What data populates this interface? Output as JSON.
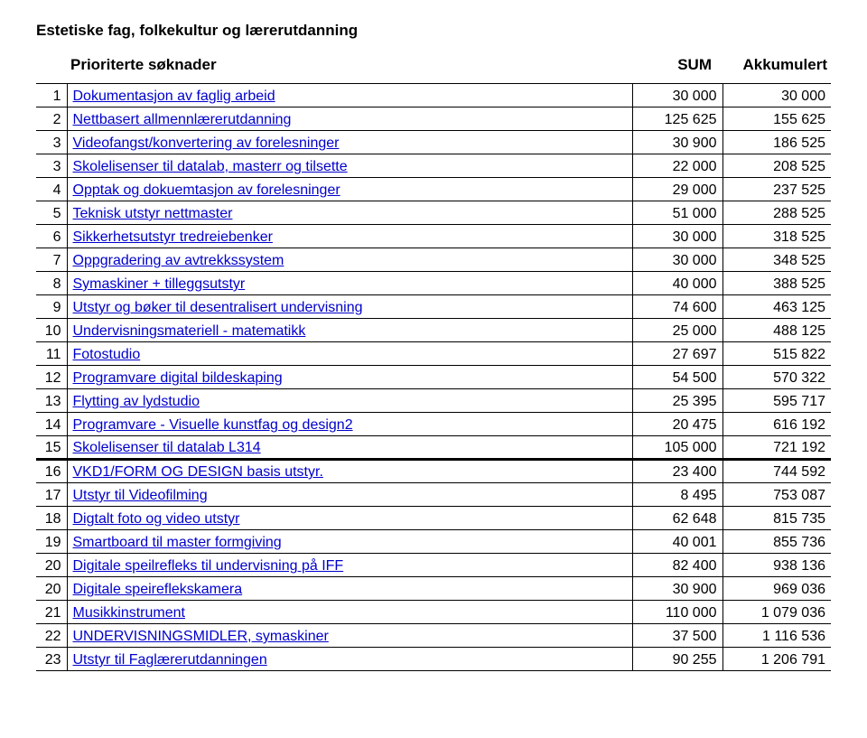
{
  "title": "Estetiske fag, folkekultur og lærerutdanning",
  "header": {
    "label": "Prioriterte søknader",
    "sum": "SUM",
    "akk": "Akkumulert"
  },
  "divider_after_index": 15,
  "rows": [
    {
      "n": "1",
      "label": "Dokumentasjon av faglig arbeid",
      "sum": "30 000",
      "akk": "30 000"
    },
    {
      "n": "2",
      "label": "Nettbasert allmennlærerutdanning",
      "sum": "125 625",
      "akk": "155 625"
    },
    {
      "n": "3",
      "label": "Videofangst/konvertering av forelesninger",
      "sum": "30 900",
      "akk": "186 525"
    },
    {
      "n": "3",
      "label": "Skolelisenser til datalab, masterr og tilsette",
      "sum": "22 000",
      "akk": "208 525"
    },
    {
      "n": "4",
      "label": "Opptak og dokuemtasjon av forelesninger",
      "sum": "29 000",
      "akk": "237 525"
    },
    {
      "n": "5",
      "label": "Teknisk utstyr nettmaster",
      "sum": "51 000",
      "akk": "288 525"
    },
    {
      "n": "6",
      "label": "Sikkerhetsutstyr tredreiebenker",
      "sum": "30 000",
      "akk": "318 525"
    },
    {
      "n": "7",
      "label": "Oppgradering av avtrekkssystem",
      "sum": "30 000",
      "akk": "348 525"
    },
    {
      "n": "8",
      "label": "Symaskiner + tilleggsutstyr",
      "sum": "40 000",
      "akk": "388 525"
    },
    {
      "n": "9",
      "label": "Utstyr og bøker til desentralisert undervisning",
      "sum": "74 600",
      "akk": "463 125"
    },
    {
      "n": "10",
      "label": "Undervisningsmateriell - matematikk",
      "sum": "25 000",
      "akk": "488 125"
    },
    {
      "n": "11",
      "label": "Fotostudio",
      "sum": "27 697",
      "akk": "515 822"
    },
    {
      "n": "12",
      "label": "Programvare digital bildeskaping",
      "sum": "54 500",
      "akk": "570 322"
    },
    {
      "n": "13",
      "label": "Flytting av lydstudio",
      "sum": "25 395",
      "akk": "595 717"
    },
    {
      "n": "14",
      "label": "Programvare - Visuelle kunstfag og design2",
      "sum": "20 475",
      "akk": "616 192"
    },
    {
      "n": "15",
      "label": "Skolelisenser til datalab L314",
      "sum": "105 000",
      "akk": "721 192"
    },
    {
      "n": "16",
      "label": "VKD1/FORM OG DESIGN basis utstyr.",
      "sum": "23 400",
      "akk": "744 592"
    },
    {
      "n": "17",
      "label": "Utstyr til Videofilming",
      "sum": "8 495",
      "akk": "753 087"
    },
    {
      "n": "18",
      "label": "Digtalt foto og video utstyr",
      "sum": "62 648",
      "akk": "815 735"
    },
    {
      "n": "19",
      "label": "Smartboard til master formgiving",
      "sum": "40 001",
      "akk": "855 736"
    },
    {
      "n": "20",
      "label": "Digitale speilrefleks til undervisning på IFF",
      "sum": "82 400",
      "akk": "938 136"
    },
    {
      "n": "20",
      "label": "Digitale speireflekskamera",
      "sum": "30 900",
      "akk": "969 036"
    },
    {
      "n": "21",
      "label": "Musikkinstrument",
      "sum": "110 000",
      "akk": "1 079 036"
    },
    {
      "n": "22",
      "label": "UNDERVISNINGSMIDLER, symaskiner",
      "sum": "37 500",
      "akk": "1 116 536"
    },
    {
      "n": "23",
      "label": "Utstyr til Faglærerutdanningen",
      "sum": "90 255",
      "akk": "1 206 791"
    }
  ]
}
